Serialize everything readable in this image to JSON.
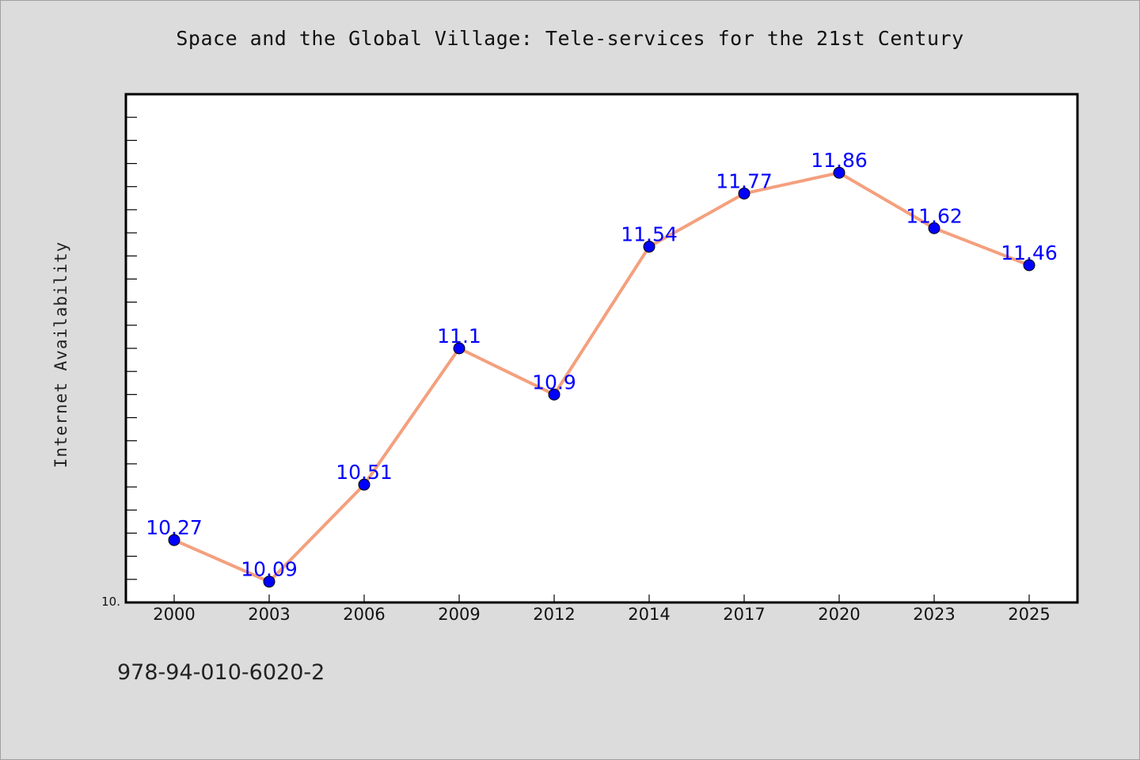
{
  "chart_data": {
    "type": "line",
    "title": "Space and the Global Village: Tele-services for the 21st Century",
    "xlabel": "",
    "ylabel": "Internet Availability",
    "categories": [
      "2000",
      "2003",
      "2006",
      "2009",
      "2012",
      "2014",
      "2017",
      "2020",
      "2023",
      "2025"
    ],
    "series": [
      {
        "values": [
          10.27,
          10.09,
          10.51,
          11.1,
          10.9,
          11.54,
          11.77,
          11.86,
          11.62,
          11.46
        ]
      }
    ],
    "data_labels": [
      "10.27",
      "10.09",
      "10.51",
      "11.1",
      "10.9",
      "11.54",
      "11.77",
      "11.86",
      "11.62",
      "11.46"
    ],
    "ylim": [
      10.0,
      12.2
    ],
    "y_tick_label": "10.",
    "grid": false,
    "legend": "none",
    "colors": {
      "line": "#f4a07e",
      "marker": "#0000ff",
      "marker_edge": "#000000",
      "data_label": "#0000ff",
      "plot_background": "#ffffff",
      "page_background": "#dcdcdc"
    }
  },
  "footer": {
    "code": "978-94-010-6020-2"
  }
}
